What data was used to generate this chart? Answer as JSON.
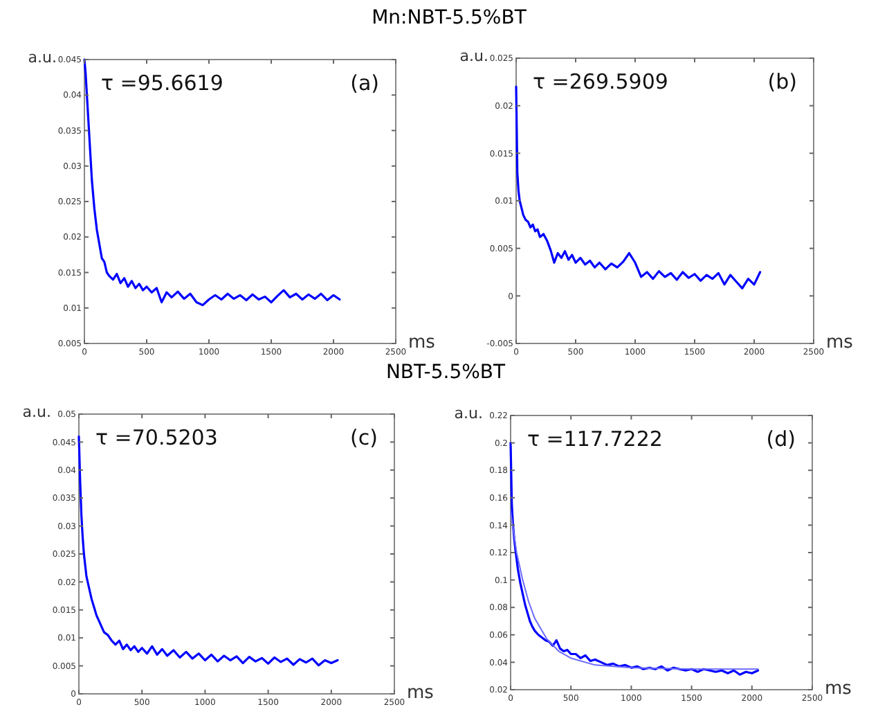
{
  "chart_data": [
    {
      "type": "line",
      "title": "Mn:NBT-5.5%BT",
      "xlabel": "ms",
      "ylabel": "a.u.",
      "annotations": [
        "τ =95.6619",
        "(a)"
      ],
      "xlim": [
        0,
        2500
      ],
      "xticks": [
        0,
        500,
        1000,
        1500,
        2000,
        2500
      ],
      "ylim": [
        0.005,
        0.045
      ],
      "yticks": [
        0.005,
        0.01,
        0.015,
        0.02,
        0.025,
        0.03,
        0.035,
        0.04,
        0.045
      ],
      "x": [
        0,
        10,
        20,
        30,
        40,
        50,
        60,
        80,
        100,
        120,
        140,
        160,
        180,
        200,
        230,
        260,
        290,
        320,
        350,
        380,
        410,
        440,
        470,
        500,
        540,
        580,
        620,
        660,
        700,
        750,
        800,
        850,
        900,
        950,
        1000,
        1050,
        1100,
        1150,
        1200,
        1250,
        1300,
        1350,
        1400,
        1450,
        1500,
        1550,
        1600,
        1650,
        1700,
        1750,
        1800,
        1850,
        1900,
        1950,
        2000,
        2050
      ],
      "series": [
        {
          "color": "#0000ff",
          "values": [
            0.045,
            0.043,
            0.04,
            0.037,
            0.034,
            0.031,
            0.028,
            0.024,
            0.021,
            0.019,
            0.017,
            0.0165,
            0.015,
            0.0145,
            0.014,
            0.0148,
            0.0135,
            0.0142,
            0.013,
            0.0138,
            0.0128,
            0.0134,
            0.0125,
            0.013,
            0.0122,
            0.0128,
            0.0108,
            0.0122,
            0.0115,
            0.0123,
            0.0113,
            0.012,
            0.0108,
            0.0104,
            0.0112,
            0.0118,
            0.0112,
            0.012,
            0.0113,
            0.0118,
            0.0111,
            0.0119,
            0.0112,
            0.0116,
            0.0108,
            0.0117,
            0.0125,
            0.0115,
            0.012,
            0.0112,
            0.0119,
            0.0113,
            0.012,
            0.0111,
            0.0118,
            0.0112
          ]
        }
      ]
    },
    {
      "type": "line",
      "xlabel": "ms",
      "ylabel": "a.u.",
      "annotations": [
        "τ =269.5909",
        "(b)"
      ],
      "xlim": [
        0,
        2500
      ],
      "xticks": [
        0,
        500,
        1000,
        1500,
        2000,
        2500
      ],
      "ylim": [
        -0.005,
        0.025
      ],
      "yticks": [
        -0.005,
        0,
        0.005,
        0.01,
        0.015,
        0.02,
        0.025
      ],
      "x": [
        0,
        10,
        20,
        30,
        40,
        50,
        60,
        80,
        100,
        120,
        140,
        160,
        180,
        200,
        230,
        260,
        290,
        320,
        350,
        380,
        410,
        440,
        470,
        500,
        540,
        580,
        620,
        660,
        700,
        750,
        800,
        850,
        900,
        950,
        1000,
        1050,
        1100,
        1150,
        1200,
        1250,
        1300,
        1350,
        1400,
        1450,
        1500,
        1550,
        1600,
        1650,
        1700,
        1750,
        1800,
        1850,
        1900,
        1950,
        2000,
        2050
      ],
      "series": [
        {
          "color": "#0000ff",
          "values": [
            0.022,
            0.013,
            0.011,
            0.01,
            0.0095,
            0.009,
            0.0085,
            0.008,
            0.0078,
            0.0072,
            0.0075,
            0.0068,
            0.007,
            0.0062,
            0.0065,
            0.0058,
            0.0048,
            0.0035,
            0.0045,
            0.004,
            0.0047,
            0.0038,
            0.0043,
            0.0035,
            0.004,
            0.0033,
            0.0037,
            0.003,
            0.0035,
            0.0028,
            0.0034,
            0.003,
            0.0036,
            0.0045,
            0.0035,
            0.002,
            0.0025,
            0.0018,
            0.0026,
            0.002,
            0.0024,
            0.0017,
            0.0025,
            0.0019,
            0.0023,
            0.0016,
            0.0022,
            0.0018,
            0.0024,
            0.0012,
            0.0022,
            0.0015,
            0.0008,
            0.0018,
            0.0012,
            0.0025
          ]
        }
      ]
    },
    {
      "type": "line",
      "title": "NBT-5.5%BT",
      "xlabel": "ms",
      "ylabel": "a.u.",
      "annotations": [
        "τ =70.5203",
        "(c)"
      ],
      "xlim": [
        0,
        2500
      ],
      "xticks": [
        0,
        500,
        1000,
        1500,
        2000,
        2500
      ],
      "ylim": [
        0,
        0.05
      ],
      "yticks": [
        0,
        0.005,
        0.01,
        0.015,
        0.02,
        0.025,
        0.03,
        0.035,
        0.04,
        0.045,
        0.05
      ],
      "x": [
        0,
        10,
        20,
        30,
        40,
        50,
        60,
        80,
        100,
        120,
        140,
        160,
        180,
        200,
        230,
        260,
        290,
        320,
        350,
        380,
        410,
        440,
        470,
        500,
        540,
        580,
        620,
        660,
        700,
        750,
        800,
        850,
        900,
        950,
        1000,
        1050,
        1100,
        1150,
        1200,
        1250,
        1300,
        1350,
        1400,
        1450,
        1500,
        1550,
        1600,
        1650,
        1700,
        1750,
        1800,
        1850,
        1900,
        1950,
        2000,
        2050
      ],
      "series": [
        {
          "color": "#0000ff",
          "values": [
            0.046,
            0.038,
            0.032,
            0.028,
            0.025,
            0.023,
            0.021,
            0.019,
            0.017,
            0.0155,
            0.014,
            0.013,
            0.012,
            0.011,
            0.0105,
            0.0095,
            0.0088,
            0.0095,
            0.008,
            0.0088,
            0.0078,
            0.0085,
            0.0075,
            0.0082,
            0.0072,
            0.0085,
            0.007,
            0.008,
            0.0068,
            0.0078,
            0.0065,
            0.0075,
            0.0063,
            0.0072,
            0.006,
            0.007,
            0.0058,
            0.0068,
            0.006,
            0.0067,
            0.0055,
            0.0066,
            0.0058,
            0.0064,
            0.0054,
            0.0065,
            0.0057,
            0.0063,
            0.0052,
            0.0062,
            0.0056,
            0.0063,
            0.0051,
            0.006,
            0.0055,
            0.006
          ]
        }
      ]
    },
    {
      "type": "line",
      "xlabel": "ms",
      "ylabel": "a.u.",
      "annotations": [
        "τ =117.7222",
        "(d)"
      ],
      "xlim": [
        0,
        2500
      ],
      "xticks": [
        0,
        500,
        1000,
        1500,
        2000,
        2500
      ],
      "ylim": [
        0.02,
        0.22
      ],
      "yticks": [
        0.02,
        0.04,
        0.06,
        0.08,
        0.1,
        0.12,
        0.14,
        0.16,
        0.18,
        0.2,
        0.22
      ],
      "x": [
        0,
        10,
        20,
        30,
        40,
        50,
        60,
        80,
        100,
        120,
        140,
        160,
        180,
        200,
        230,
        260,
        290,
        320,
        350,
        380,
        410,
        440,
        470,
        500,
        540,
        580,
        620,
        660,
        700,
        750,
        800,
        850,
        900,
        950,
        1000,
        1050,
        1100,
        1150,
        1200,
        1250,
        1300,
        1350,
        1400,
        1450,
        1500,
        1550,
        1600,
        1650,
        1700,
        1750,
        1800,
        1850,
        1900,
        1950,
        2000,
        2050
      ],
      "series": [
        {
          "color": "#0000ff",
          "values": [
            0.2,
            0.155,
            0.14,
            0.13,
            0.122,
            0.115,
            0.108,
            0.098,
            0.09,
            0.082,
            0.076,
            0.07,
            0.066,
            0.063,
            0.06,
            0.058,
            0.056,
            0.055,
            0.052,
            0.056,
            0.05,
            0.048,
            0.049,
            0.046,
            0.046,
            0.043,
            0.045,
            0.041,
            0.042,
            0.04,
            0.038,
            0.039,
            0.037,
            0.038,
            0.036,
            0.037,
            0.035,
            0.036,
            0.035,
            0.037,
            0.034,
            0.036,
            0.035,
            0.034,
            0.035,
            0.033,
            0.035,
            0.034,
            0.033,
            0.034,
            0.032,
            0.034,
            0.031,
            0.033,
            0.032,
            0.034
          ]
        },
        {
          "color": "#6a6aff",
          "x": [
            0,
            50,
            100,
            150,
            200,
            300,
            400,
            500,
            700,
            1000,
            1500,
            2050
          ],
          "values": [
            0.15,
            0.12,
            0.1,
            0.084,
            0.072,
            0.057,
            0.048,
            0.043,
            0.038,
            0.036,
            0.035,
            0.035
          ]
        }
      ]
    }
  ]
}
